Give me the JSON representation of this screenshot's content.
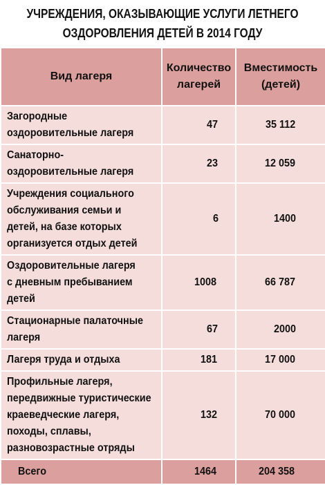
{
  "title": {
    "line1": "УЧРЕЖДЕНИЯ, ОКАЗЫВАЮЩИЕ УСЛУГИ ЛЕТНЕГО",
    "line2": "ОЗДОРОВЛЕНИЯ ДЕТЕЙ В 2014 ГОДУ"
  },
  "header": {
    "col1": "Вид лагеря",
    "col2_line1": "Количество",
    "col2_line2": "лагерей",
    "col3_line1": "Вместимость",
    "col3_line2": "(детей)"
  },
  "rows": [
    {
      "lines": [
        "Загородные",
        "оздоровительные лагеря"
      ],
      "count": "47",
      "capacity": "35 112"
    },
    {
      "lines": [
        "Санаторно-",
        "оздоровительные лагеря"
      ],
      "count": "23",
      "capacity": "12 059"
    },
    {
      "lines": [
        "Учреждения социального",
        "обслуживания семьи и",
        "детей, на базе которых",
        "организуется отдых детей"
      ],
      "count": "6",
      "capacity": "1400"
    },
    {
      "lines": [
        "Оздоровительные лагеря",
        "с дневным пребыванием",
        "детей"
      ],
      "count": "1008",
      "capacity": "66 787"
    },
    {
      "lines": [
        "Стационарные палаточные",
        "лагеря"
      ],
      "count": "67",
      "capacity": "2000"
    },
    {
      "lines": [
        "Лагеря труда и отдыха"
      ],
      "count": "181",
      "capacity": "17 000"
    },
    {
      "lines": [
        "Профильные лагеря,",
        "передвижные туристические",
        "краеведческие лагеря,",
        "походы, сплавы,",
        "разновозрастные отряды"
      ],
      "count": "132",
      "capacity": "70 000"
    }
  ],
  "total": {
    "label": "Всего",
    "count": "1464",
    "capacity": "204 358"
  },
  "colors": {
    "header_bg": "#dba09d",
    "row_bg": "#f5dddb"
  }
}
